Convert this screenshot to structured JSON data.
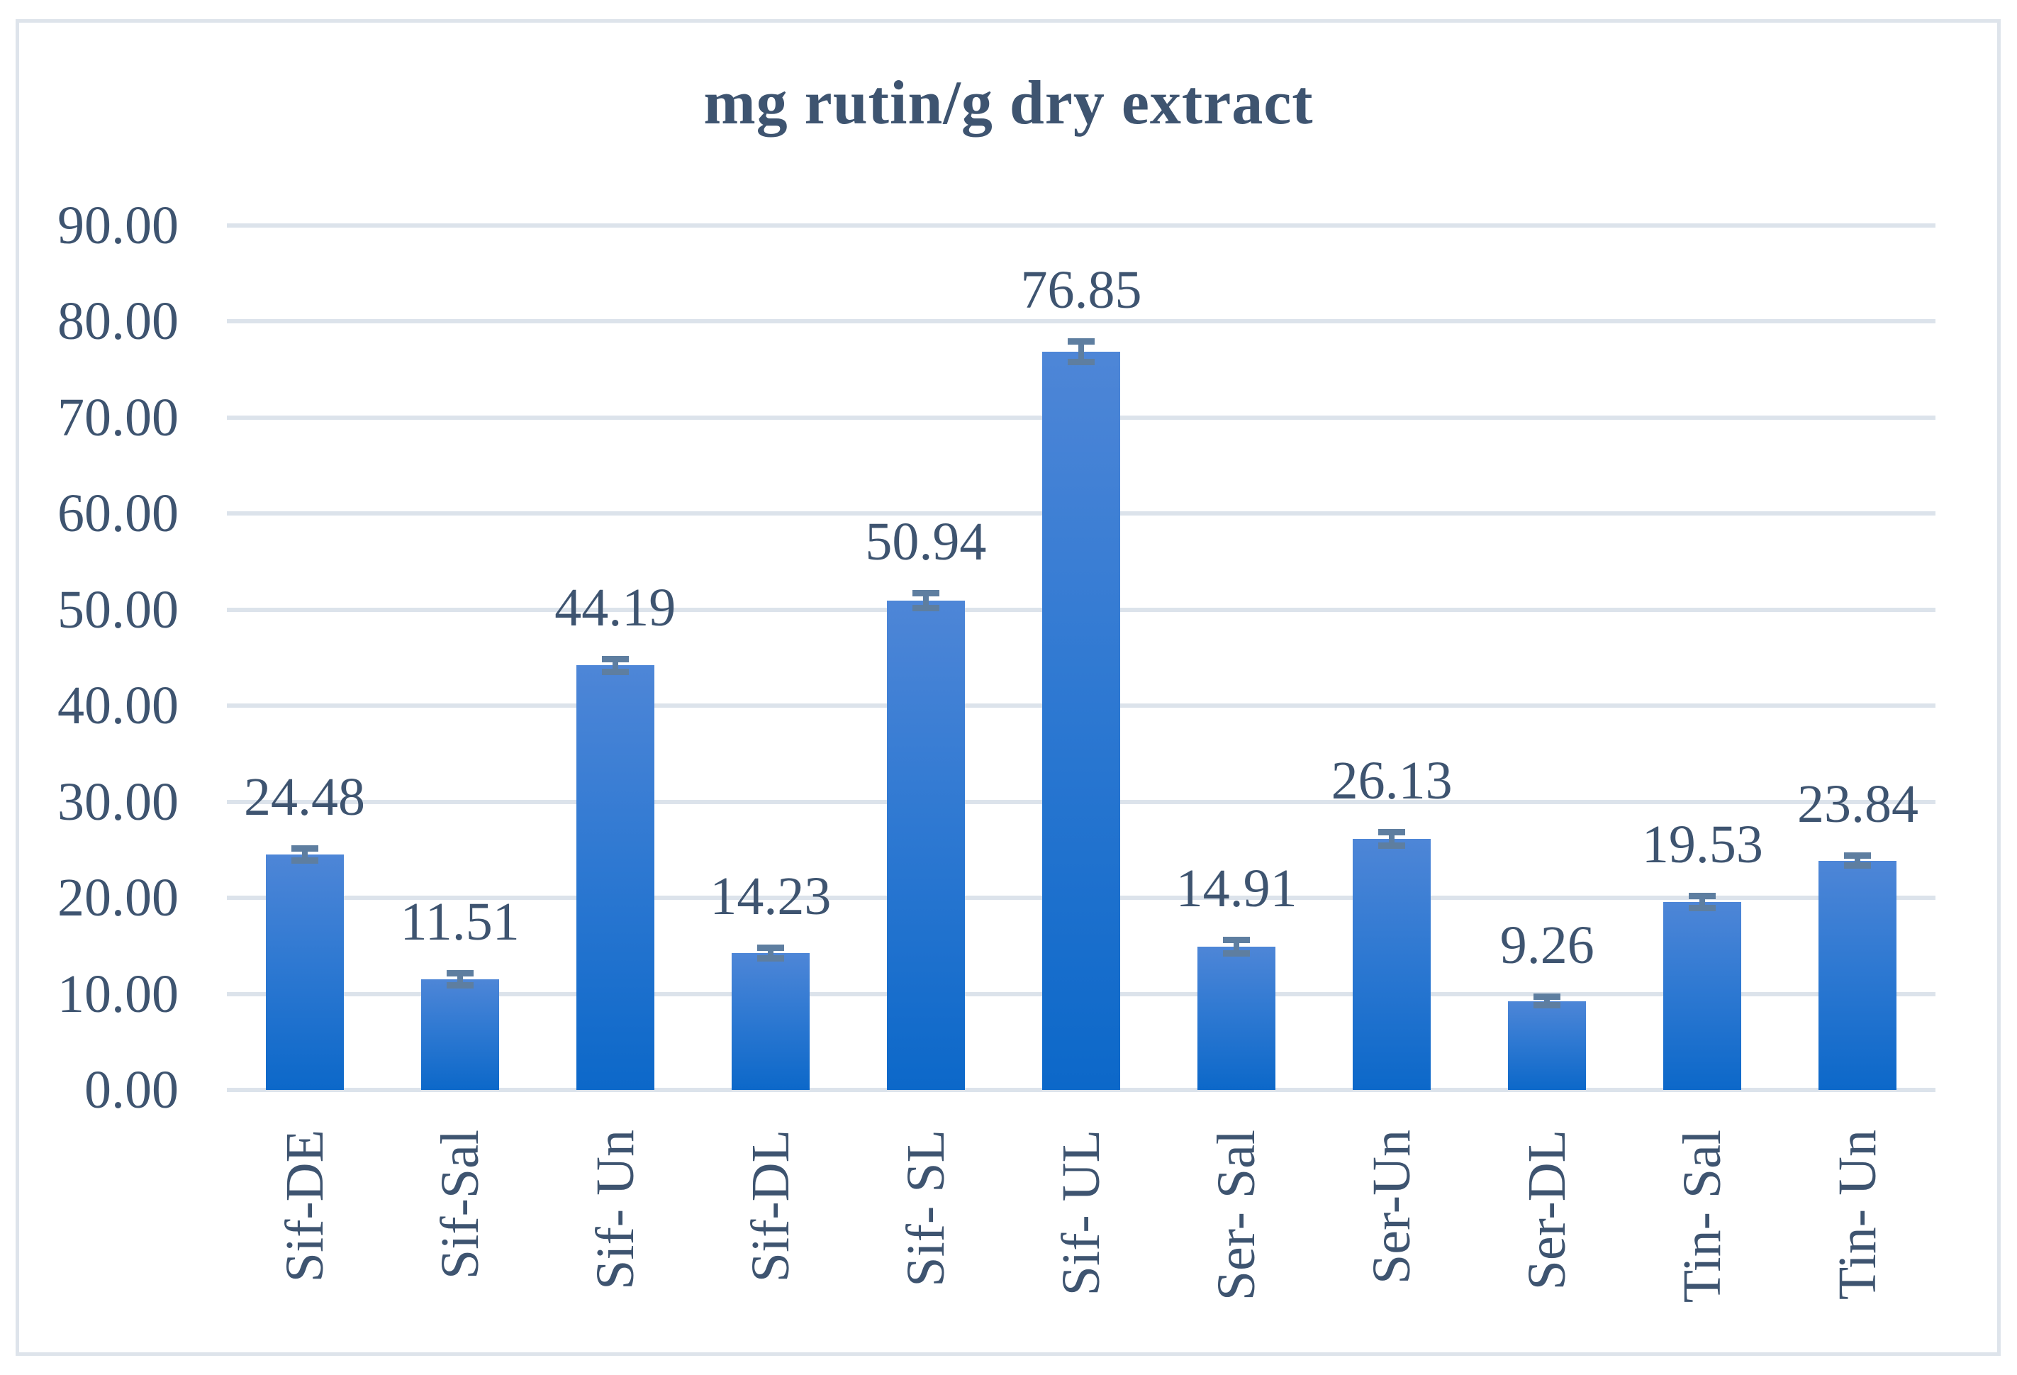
{
  "chart_data": {
    "type": "bar",
    "title": "mg rutin/g dry extract",
    "categories": [
      "Sif-DE",
      "Sif-Sal",
      "Sif- Un",
      "Sif-DL",
      "Sif- SL",
      "Sif- UL",
      "Ser- Sal",
      "Ser-Un",
      "Ser-DL",
      "Tin- Sal",
      "Tin- Un"
    ],
    "values": [
      24.48,
      11.51,
      44.19,
      14.23,
      50.94,
      76.85,
      14.91,
      26.13,
      9.26,
      19.53,
      23.84
    ],
    "value_labels": [
      "24.48",
      "11.51",
      "44.19",
      "14.23",
      "50.94",
      "76.85",
      "14.91",
      "26.13",
      "9.26",
      "19.53",
      "23.84"
    ],
    "error_bars": [
      0.95,
      0.95,
      1.0,
      0.9,
      1.1,
      1.4,
      1.0,
      1.05,
      0.8,
      0.95,
      0.85
    ],
    "xlabel": "",
    "ylabel": "",
    "ylim": [
      0,
      90
    ],
    "y_tick_step": 10,
    "y_tick_labels": [
      "0.00",
      "10.00",
      "20.00",
      "30.00",
      "40.00",
      "50.00",
      "60.00",
      "70.00",
      "80.00",
      "90.00"
    ],
    "grid": true,
    "legend_position": "none"
  },
  "colors": {
    "bar_gradient_top": "#4e86d7",
    "bar_gradient_bottom": "#0c68c9",
    "error_bar": "#5e7ea0",
    "gridline": "#dce3eb",
    "chart_border": "#dee4eb",
    "text": "#3e5470",
    "background": "#ffffff"
  }
}
